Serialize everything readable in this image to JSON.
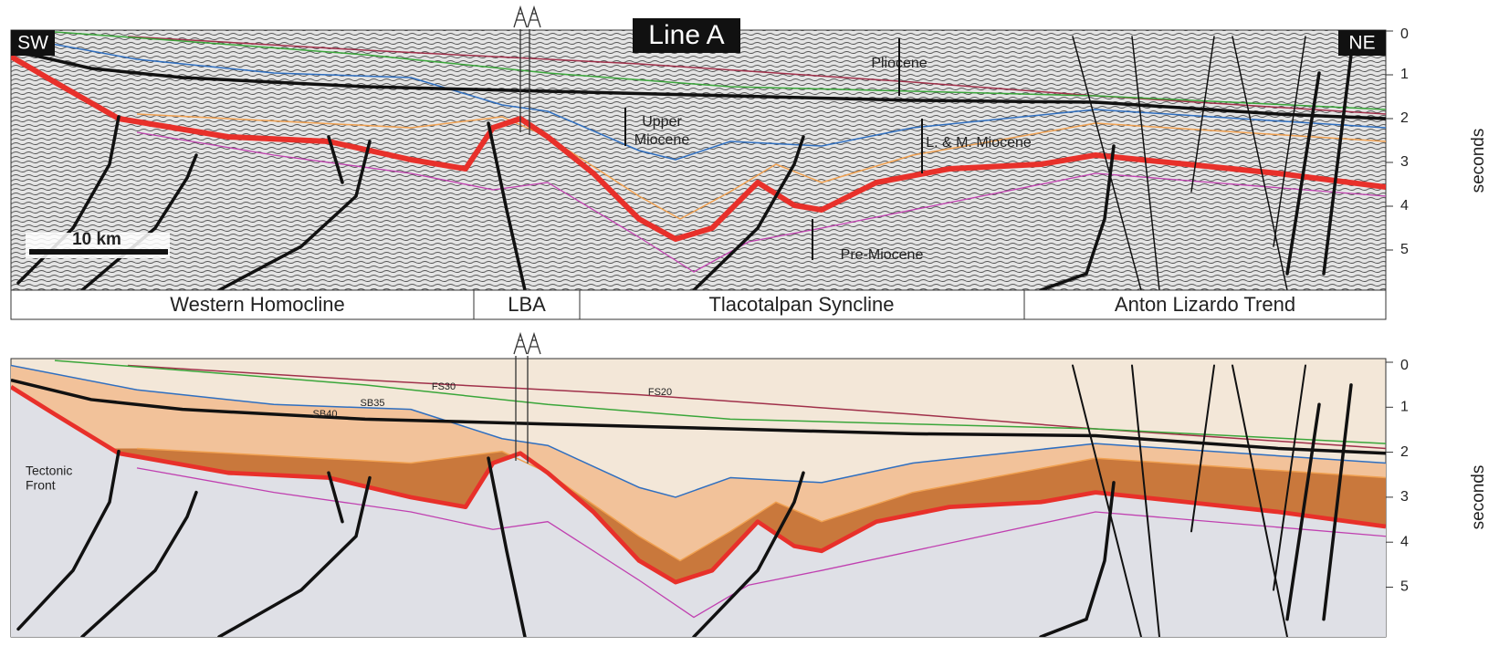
{
  "top_panel": {
    "title": "Line A",
    "left_label": "SW",
    "right_label": "NE",
    "annotations": {
      "pliocene": "Pliocene",
      "upper_miocene": [
        "Upper",
        "Miocene"
      ],
      "lm_miocene": "L. & M. Miocene",
      "pre_miocene": "Pre-Miocene"
    },
    "scale_bar": "10 km",
    "axis_label": "seconds",
    "ticks": [
      0,
      1,
      2,
      3,
      4,
      5
    ],
    "provinces": [
      "Western Homocline",
      "LBA",
      "Tlacotalpan Syncline",
      "Anton Lizardo Trend"
    ]
  },
  "bottom_panel": {
    "horizon_labels": {
      "fs30": "FS30",
      "fs20": "FS20",
      "sb35": "SB35",
      "sb40": "SB40"
    },
    "annotation": [
      "Tectonic",
      "Front"
    ],
    "axis_label": "seconds",
    "ticks": [
      0,
      1,
      2,
      3,
      4,
      5
    ]
  }
}
